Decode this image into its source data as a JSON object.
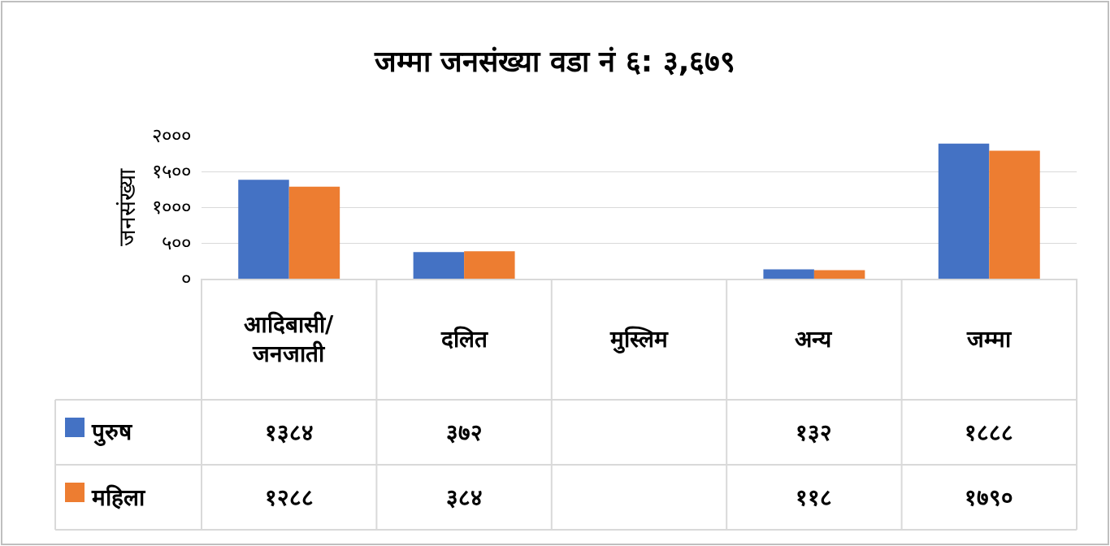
{
  "chart_data": {
    "type": "bar",
    "title": "जम्मा जनसंख्या वडा नं ६: ३,६७९",
    "ylabel": "जनसंख्या",
    "categories": [
      "आदिबासी/जनजाती",
      "दलित",
      "मुस्लिम",
      "अन्य",
      "जम्मा"
    ],
    "series": [
      {
        "name": "पुरुष",
        "color": "#4472c4",
        "values": [
          1384,
          372,
          null,
          132,
          1888
        ],
        "value_labels": [
          "१३८४",
          "३७२",
          null,
          "१३२",
          "१८८८"
        ]
      },
      {
        "name": "महिला",
        "color": "#ed7d31",
        "values": [
          1288,
          384,
          null,
          118,
          1790
        ],
        "value_labels": [
          "१२८८",
          "३८४",
          null,
          "११८",
          "१७९०"
        ]
      }
    ],
    "ylim": [
      0,
      2000
    ],
    "yticks": [
      {
        "value": 0,
        "label": "०"
      },
      {
        "value": 500,
        "label": "५००"
      },
      {
        "value": 1000,
        "label": "१०००"
      },
      {
        "value": 1500,
        "label": "१५००"
      },
      {
        "value": 2000,
        "label": "२०००"
      }
    ],
    "grid": "y",
    "legend": "bottom"
  }
}
